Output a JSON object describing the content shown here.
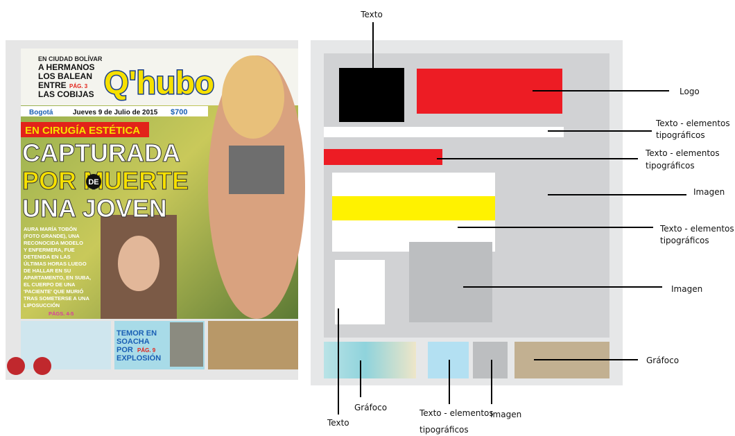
{
  "newspaper": {
    "kicker": "EN CIUDAD BOLÍVAR",
    "teaser": [
      "A HERMANOS",
      "LOS BALEAN",
      "ENTRE",
      "LAS COBIJAS"
    ],
    "teaser_page": "PÁG. 3",
    "logo": "Q'hubo",
    "city": "Bogotá",
    "date": "Jueves 9 de Julio de 2015",
    "price": "$700",
    "section": "EN CIRUGÍA ESTÉTICA",
    "headline": [
      "CAPTURADA",
      "POR MUERTE",
      "UNA JOVEN"
    ],
    "headline_de": "DE",
    "body": [
      "AURA MARÍA TOBÓN",
      "(FOTO GRANDE), UNA",
      "RECONOCIDA MODELO",
      "Y ENFERMERA, FUE",
      "DETENIDA EN LAS",
      "ÚLTIMAS HORAS LUEGO",
      "DE HALLAR EN SU",
      "APARTAMENTO, EN SUBA,",
      "EL CUERPO DE UNA",
      "'PACIENTE' QUE MURIÓ",
      "TRAS SOMETERSE A UNA",
      "LIPOSUCCIÓN"
    ],
    "body_page": "PÁGS. 4-5",
    "bottom_story": [
      "TEMOR EN",
      "SOACHA",
      "POR",
      "EXPLOSIÓN"
    ],
    "bottom_page": "PÁG. 9"
  },
  "diagram": {
    "labels": {
      "texto_top": "Texto",
      "logo": "Logo",
      "tipo_1": [
        "Texto - elementos",
        "tipográficos"
      ],
      "tipo_2": [
        "Texto - elementos",
        "tipográficos"
      ],
      "imagen_1": "Imagen",
      "tipo_3": [
        "Texto - elementos",
        "tipográficos"
      ],
      "imagen_2": "Imagen",
      "grafoco_right": "Gráfoco",
      "grafoco_bottom": "Gráfoco",
      "texto_bottom": "Texto",
      "tipo_bottom": [
        "Texto - elementos",
        "tipográficos"
      ],
      "imagen_bottom": "Imagen"
    }
  }
}
